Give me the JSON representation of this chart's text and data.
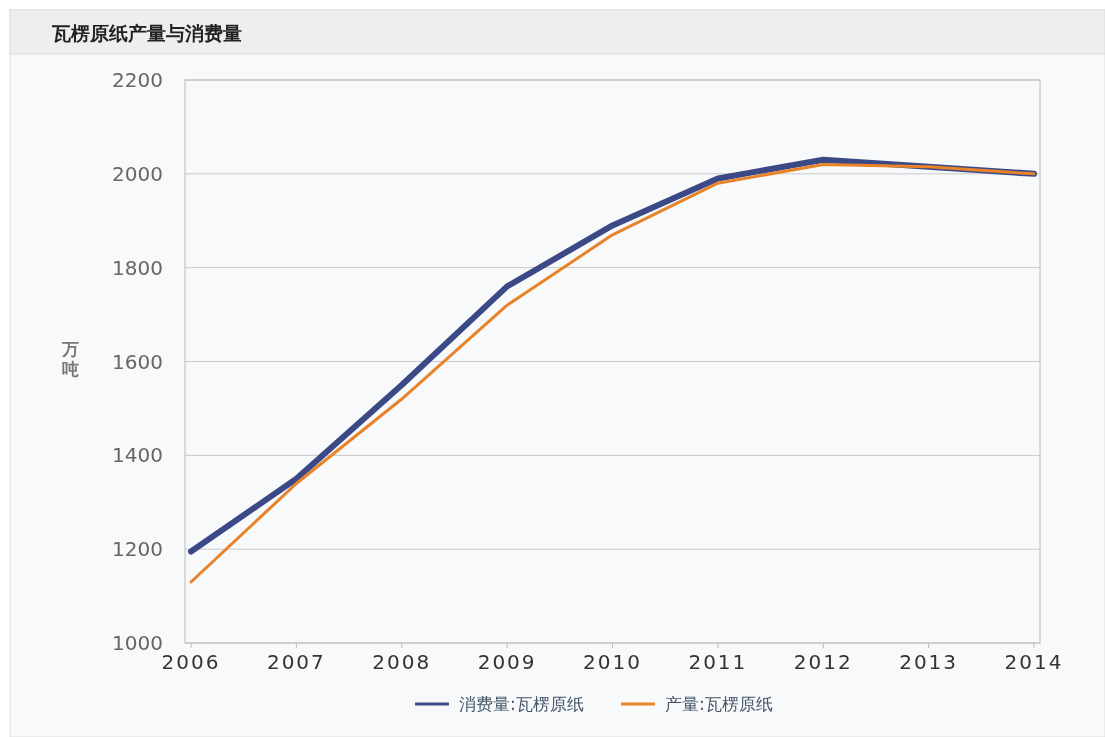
{
  "chart_data": {
    "type": "line",
    "title": "瓦楞原纸产量与消费量",
    "ylabel": "万吨",
    "categories": [
      "2006",
      "2007",
      "2008",
      "2009",
      "2010",
      "2011",
      "2012",
      "2013",
      "2014"
    ],
    "series": [
      {
        "name": "消费量:瓦楞原纸",
        "color": "#3b4a86",
        "values": [
          1195,
          1350,
          1550,
          1760,
          1890,
          1990,
          2030,
          2015,
          2000
        ]
      },
      {
        "name": "产量:瓦楞原纸",
        "color": "#e8832a",
        "values": [
          1130,
          1340,
          1520,
          1720,
          1870,
          1980,
          2020,
          2015,
          2000
        ]
      }
    ],
    "ylim": [
      1000,
      2200
    ],
    "yticks": [
      1000,
      1200,
      1400,
      1600,
      1800,
      2000,
      2200
    ],
    "grid": "y",
    "legend": "bottom",
    "marker": "none",
    "line_style": "solid"
  }
}
